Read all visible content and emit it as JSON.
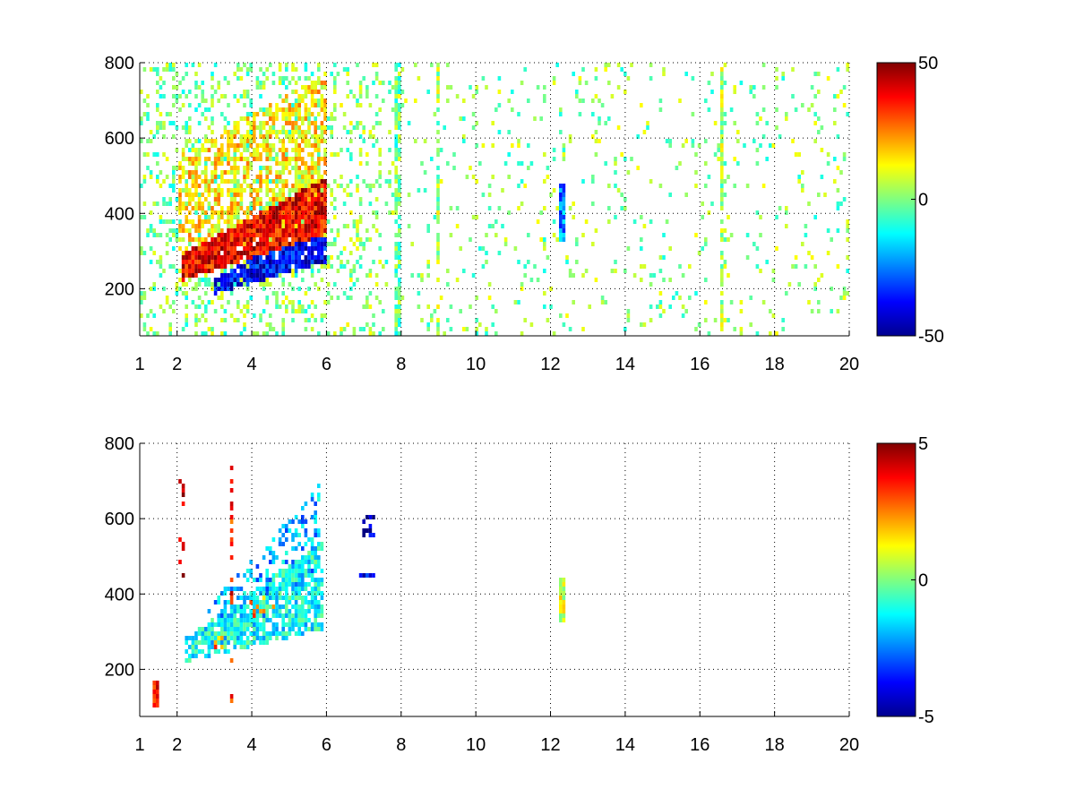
{
  "chart_data": [
    {
      "type": "heatmap",
      "x_ticks": [
        1,
        2,
        4,
        6,
        8,
        10,
        12,
        14,
        16,
        18,
        20
      ],
      "y_ticks": [
        200,
        400,
        600,
        800
      ],
      "xlim": [
        1,
        20
      ],
      "ylim": [
        75,
        800
      ],
      "grid": true,
      "colormap": "jet",
      "colorbar": {
        "min": -50,
        "max": 50,
        "ticks": [
          50,
          0,
          -50
        ]
      },
      "features": [
        {
          "type": "band",
          "x_start": 2.1,
          "x_end": 6.0,
          "y_start_center": 255,
          "y_end_center": 420,
          "y_start_width": 70,
          "y_end_width": 150,
          "value": 38,
          "density": 0.95
        },
        {
          "type": "band",
          "x_start": 3.0,
          "x_end": 6.0,
          "y_start_center": 205,
          "y_end_center": 330,
          "y_start_width": 40,
          "y_end_width": 120,
          "value": -38,
          "density": 0.9
        },
        {
          "type": "band",
          "x_start": 2.0,
          "x_end": 6.0,
          "y_start_center": 420,
          "y_end_center": 560,
          "y_start_width": 260,
          "y_end_width": 420,
          "value": 15,
          "density": 0.55
        },
        {
          "type": "region",
          "x_start": 1.0,
          "x_end": 6.0,
          "y_start": 75,
          "y_end": 800,
          "value": 0,
          "density": 0.25
        },
        {
          "type": "region",
          "x_start": 6.0,
          "x_end": 7.5,
          "y_start": 75,
          "y_end": 800,
          "value": 2,
          "density": 0.2
        },
        {
          "type": "stripe",
          "x": 7.9,
          "y_start": 75,
          "y_end": 800,
          "value": -2,
          "density": 0.8
        },
        {
          "type": "stripe",
          "x": 9.0,
          "y_start": 75,
          "y_end": 800,
          "value": 3,
          "density": 0.65
        },
        {
          "type": "stripe",
          "x": 12.3,
          "y_start": 320,
          "y_end": 480,
          "value": -25,
          "density": 1.0
        },
        {
          "type": "stripe",
          "x": 16.6,
          "y_start": 75,
          "y_end": 800,
          "value": 4,
          "density": 0.75
        },
        {
          "type": "region",
          "x_start": 7.5,
          "x_end": 20.0,
          "y_start": 75,
          "y_end": 800,
          "value": 1,
          "density": 0.07
        }
      ]
    },
    {
      "type": "heatmap",
      "x_ticks": [
        1,
        2,
        4,
        6,
        8,
        10,
        12,
        14,
        16,
        18,
        20
      ],
      "y_ticks": [
        200,
        400,
        600,
        800
      ],
      "xlim": [
        1,
        20
      ],
      "ylim": [
        75,
        800
      ],
      "grid": true,
      "colormap": "jet",
      "colorbar": {
        "min": -5,
        "max": 5,
        "ticks": [
          5,
          0,
          -5
        ]
      },
      "features": [
        {
          "type": "band",
          "x_start": 2.2,
          "x_end": 5.9,
          "y_start_center": 250,
          "y_end_center": 420,
          "y_start_width": 60,
          "y_end_width": 230,
          "value": -1.2,
          "density": 0.75
        },
        {
          "type": "band",
          "x_start": 3.0,
          "x_end": 4.6,
          "y_start_center": 270,
          "y_end_center": 400,
          "y_start_width": 50,
          "y_end_width": 90,
          "value": 2.5,
          "density": 0.5
        },
        {
          "type": "band",
          "x_start": 2.8,
          "x_end": 5.8,
          "y_start_center": 300,
          "y_end_center": 560,
          "y_start_width": 120,
          "y_end_width": 260,
          "value": -2.0,
          "density": 0.35
        },
        {
          "type": "stripe",
          "x": 3.45,
          "y_start": 110,
          "y_end": 760,
          "value": 3.5,
          "density": 0.45
        },
        {
          "type": "stripe",
          "x": 2.1,
          "y_start": 400,
          "y_end": 700,
          "value": 4.5,
          "density": 0.3
        },
        {
          "type": "stripe",
          "x": 1.45,
          "y_start": 95,
          "y_end": 170,
          "value": 4.0,
          "density": 0.8
        },
        {
          "type": "cluster",
          "x_start": 6.9,
          "x_end": 7.3,
          "y_start": 545,
          "y_end": 610,
          "value": -4.5,
          "density": 0.55
        },
        {
          "type": "cluster",
          "x_start": 6.8,
          "x_end": 7.3,
          "y_start": 448,
          "y_end": 460,
          "value": -3.5,
          "density": 0.8
        },
        {
          "type": "stripe",
          "x": 12.3,
          "y_start": 330,
          "y_end": 440,
          "value": 1.0,
          "density": 1.0
        }
      ]
    }
  ]
}
